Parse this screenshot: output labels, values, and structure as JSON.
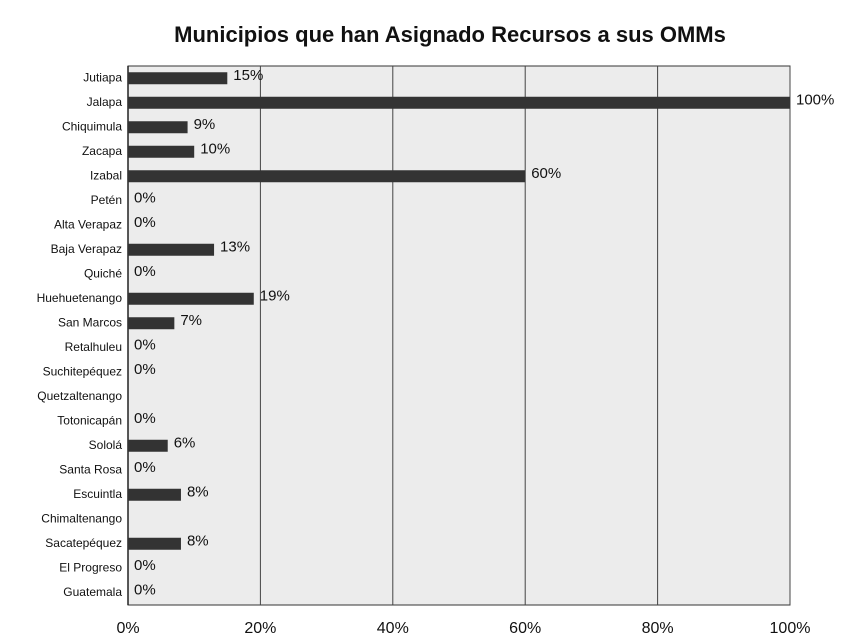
{
  "chart_data": {
    "type": "bar",
    "orientation": "horizontal",
    "title": "Municipios que han Asignado Recursos a sus OMMs",
    "categories": [
      "Jutiapa",
      "Jalapa",
      "Chiquimula",
      "Zacapa",
      "Izabal",
      "Petén",
      "Alta Verapaz",
      "Baja Verapaz",
      "Quiché",
      "Huehuetenango",
      "San Marcos",
      "Retalhuleu",
      "Suchitepéquez",
      "Quetzaltenango",
      "Totonicapán",
      "Sololá",
      "Santa Rosa",
      "Escuintla",
      "Chimaltenango",
      "Sacatepéquez",
      "El Progreso",
      "Guatemala"
    ],
    "values": [
      15,
      100,
      9,
      10,
      60,
      0,
      0,
      13,
      0,
      19,
      7,
      0,
      0,
      null,
      0,
      6,
      0,
      8,
      null,
      8,
      0,
      0
    ],
    "value_labels": [
      "15%",
      "100%",
      "9%",
      "10%",
      "60%",
      "0%",
      "0%",
      "13%",
      "0%",
      "19%",
      "7%",
      "0%",
      "0%",
      null,
      "0%",
      "6%",
      "0%",
      "8%",
      null,
      "8%",
      "0%",
      "0%"
    ],
    "color": "#333333",
    "xlim": [
      0,
      100
    ],
    "xticks": [
      {
        "value": 0,
        "label": "0%"
      },
      {
        "value": 20,
        "label": "20%"
      },
      {
        "value": 40,
        "label": "40%"
      },
      {
        "value": 60,
        "label": "60%"
      },
      {
        "value": 80,
        "label": "80%"
      },
      {
        "value": 100,
        "label": "100%"
      }
    ],
    "grid": true
  }
}
